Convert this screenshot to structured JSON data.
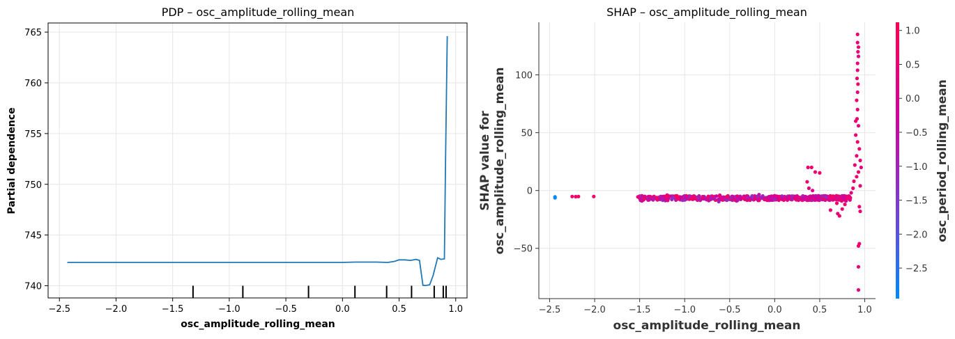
{
  "chart_data": [
    {
      "type": "line",
      "title": "PDP – osc_amplitude_rolling_mean",
      "xlabel": "osc_amplitude_rolling_mean",
      "ylabel": "Partial dependence",
      "xlim": [
        -2.6,
        1.1
      ],
      "ylim": [
        738.8,
        765.9
      ],
      "x_ticks": [
        "−2.5",
        "−2.0",
        "−1.5",
        "−1.0",
        "−0.5",
        "0.0",
        "0.5",
        "1.0"
      ],
      "x_tick_values": [
        -2.5,
        -2.0,
        -1.5,
        -1.0,
        -0.5,
        0.0,
        0.5,
        1.0
      ],
      "y_ticks": [
        "740",
        "745",
        "750",
        "755",
        "760",
        "765"
      ],
      "y_tick_values": [
        740,
        745,
        750,
        755,
        760,
        765
      ],
      "grid": true,
      "color": "#1f77b4",
      "series": [
        {
          "x": [
            -2.43,
            -2.0,
            -1.5,
            -1.0,
            -0.5,
            0.0,
            0.11,
            0.3,
            0.4,
            0.46,
            0.5,
            0.55,
            0.6,
            0.65,
            0.68,
            0.71,
            0.73,
            0.77,
            0.8,
            0.84,
            0.87,
            0.9,
            0.91,
            0.925
          ],
          "y": [
            742.3,
            742.3,
            742.3,
            742.3,
            742.3,
            742.3,
            742.33,
            742.33,
            742.3,
            742.4,
            742.55,
            742.55,
            742.5,
            742.6,
            742.5,
            740.05,
            740.02,
            740.1,
            741.0,
            742.75,
            742.6,
            742.65,
            752.0,
            764.6
          ]
        }
      ],
      "rug_deciles": [
        -1.32,
        -0.88,
        -0.3,
        0.11,
        0.39,
        0.61,
        0.81,
        0.89,
        0.915
      ]
    },
    {
      "type": "scatter",
      "title": "SHAP – osc_amplitude_rolling_mean",
      "xlabel": "osc_amplitude_rolling_mean",
      "ylabel_lines": [
        "SHAP value for",
        "osc_amplitude_rolling_mean"
      ],
      "xlim": [
        -2.62,
        1.12
      ],
      "ylim": [
        -93.5,
        145.5
      ],
      "x_ticks": [
        "−2.5",
        "−2.0",
        "−1.5",
        "−1.0",
        "−0.5",
        "0.0",
        "0.5",
        "1.0"
      ],
      "x_tick_values": [
        -2.5,
        -2.0,
        -1.5,
        -1.0,
        -0.5,
        0.0,
        0.5,
        1.0
      ],
      "y_ticks": [
        "−50",
        "0",
        "50",
        "100"
      ],
      "y_tick_values": [
        -50,
        0,
        50,
        100
      ],
      "grid": true,
      "colorbar": {
        "label": "osc_period_rolling_mean",
        "range": [
          -2.95,
          1.12
        ],
        "ticks": [
          "−2.5",
          "−2.0",
          "−1.5",
          "−1.0",
          "−0.5",
          "0.0",
          "0.5",
          "1.0"
        ],
        "tick_values": [
          -2.5,
          -2.0,
          -1.5,
          -1.0,
          -0.5,
          0.0,
          0.5,
          1.0
        ],
        "colors": [
          "#008afb",
          "#7c3dd0",
          "#d3009a",
          "#ff0052"
        ]
      },
      "points": [
        {
          "x": -2.44,
          "y": -5.5,
          "c": -2.9
        },
        {
          "x": -2.44,
          "y": -6.3,
          "c": -2.9
        },
        {
          "x": -2.25,
          "y": -5.2,
          "c": 0.6
        },
        {
          "x": -2.21,
          "y": -5.3,
          "c": 0.7
        },
        {
          "x": -2.18,
          "y": -5.2,
          "c": 0.8
        },
        {
          "x": -2.01,
          "y": -5.2,
          "c": 0.6
        },
        {
          "x": -1.52,
          "y": -5.5,
          "c": 0.5
        },
        {
          "x": 0.37,
          "y": 20.0,
          "c": 0.6
        },
        {
          "x": 0.41,
          "y": 20.0,
          "c": 0.7
        },
        {
          "x": 0.45,
          "y": 16.0,
          "c": 0.5
        },
        {
          "x": 0.5,
          "y": 15.2,
          "c": 0.6
        },
        {
          "x": 0.38,
          "y": 2.0,
          "c": 0.4
        },
        {
          "x": 0.36,
          "y": 7.5,
          "c": 0.6
        },
        {
          "x": 0.42,
          "y": 0.0,
          "c": 0.2
        },
        {
          "x": 0.92,
          "y": 135.0,
          "c": 0.6
        },
        {
          "x": 0.92,
          "y": 128.0,
          "c": 0.5
        },
        {
          "x": 0.93,
          "y": 124.0,
          "c": 0.7
        },
        {
          "x": 0.925,
          "y": 120.0,
          "c": 0.6
        },
        {
          "x": 0.93,
          "y": 116.0,
          "c": 0.3
        },
        {
          "x": 0.92,
          "y": 110.0,
          "c": 0.6
        },
        {
          "x": 0.92,
          "y": 104.0,
          "c": 0.5
        },
        {
          "x": 0.915,
          "y": 97.0,
          "c": 0.6
        },
        {
          "x": 0.925,
          "y": 92.0,
          "c": 0.7
        },
        {
          "x": 0.92,
          "y": 85.0,
          "c": 0.4
        },
        {
          "x": 0.91,
          "y": 78.0,
          "c": 0.6
        },
        {
          "x": 0.92,
          "y": 70.0,
          "c": 0.5
        },
        {
          "x": 0.915,
          "y": 62.0,
          "c": 0.6
        },
        {
          "x": 0.93,
          "y": 56.0,
          "c": 0.2
        },
        {
          "x": 0.9,
          "y": 60.0,
          "c": 0.6
        },
        {
          "x": 0.9,
          "y": 48.0,
          "c": 0.5
        },
        {
          "x": 0.92,
          "y": 42.0,
          "c": 0.7
        },
        {
          "x": 0.94,
          "y": 36.0,
          "c": 0.6
        },
        {
          "x": 0.91,
          "y": 30.0,
          "c": 0.4
        },
        {
          "x": 0.95,
          "y": 26.0,
          "c": 0.6
        },
        {
          "x": 0.89,
          "y": 22.0,
          "c": 0.5
        },
        {
          "x": 0.96,
          "y": 20.0,
          "c": 0.3
        },
        {
          "x": 0.93,
          "y": 16.0,
          "c": 0.6
        },
        {
          "x": 0.91,
          "y": 12.0,
          "c": 0.7
        },
        {
          "x": 0.88,
          "y": 8.0,
          "c": 0.6
        },
        {
          "x": 0.95,
          "y": 4.0,
          "c": 0.5
        },
        {
          "x": 0.87,
          "y": 2.0,
          "c": 0.6
        },
        {
          "x": 0.85,
          "y": -2.0,
          "c": 0.2
        },
        {
          "x": 0.94,
          "y": -14.0,
          "c": 0.6
        },
        {
          "x": 0.95,
          "y": -18.0,
          "c": 0.5
        },
        {
          "x": 0.94,
          "y": -46.0,
          "c": 0.6
        },
        {
          "x": 0.93,
          "y": -48.0,
          "c": 0.7
        },
        {
          "x": 0.93,
          "y": -66.0,
          "c": 0.6
        },
        {
          "x": 0.93,
          "y": -86.0,
          "c": 0.5
        },
        {
          "x": 0.78,
          "y": -12.0,
          "c": 0.6
        },
        {
          "x": 0.75,
          "y": -16.0,
          "c": 0.5
        },
        {
          "x": 0.69,
          "y": -11.0,
          "c": 0.6
        },
        {
          "x": 0.64,
          "y": -8.0,
          "c": 0.3
        },
        {
          "x": 0.72,
          "y": -22.0,
          "c": 0.6
        },
        {
          "x": 0.7,
          "y": -20.0,
          "c": 0.5
        },
        {
          "x": 0.62,
          "y": -17.0,
          "c": 0.6
        }
      ],
      "band": {
        "x_start": -1.5,
        "x_end": 0.85,
        "y_center": -6.5,
        "y_spread": 2.0,
        "c_low": -1.3,
        "c_high": 1.0
      }
    }
  ]
}
